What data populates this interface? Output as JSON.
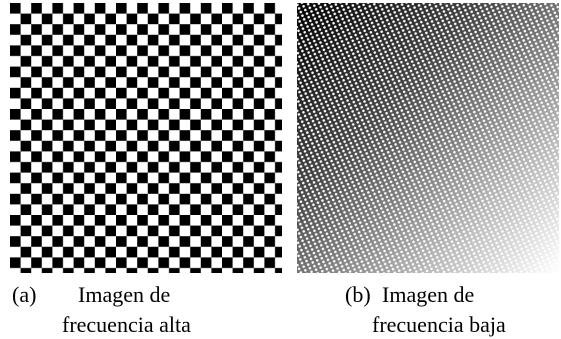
{
  "panels": [
    {
      "label": "(a)",
      "caption": [
        "Imagen de",
        "frecuencia alta"
      ]
    },
    {
      "label": "(b)",
      "caption": [
        "Imagen de",
        "frecuencia baja"
      ]
    }
  ]
}
